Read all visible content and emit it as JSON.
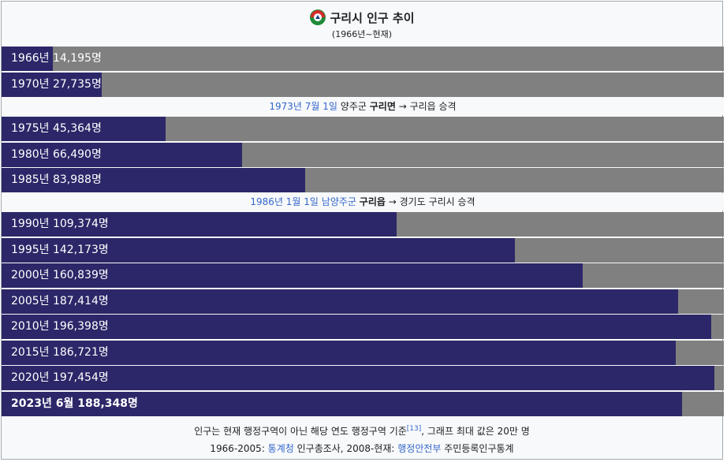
{
  "header": {
    "title": "구리시 인구 추이",
    "subtitle": "(1966년~현재)",
    "emblem": "gurisi-emblem"
  },
  "chart_data": {
    "type": "bar",
    "orientation": "horizontal",
    "title": "구리시 인구 추이",
    "subtitle": "(1966년~현재)",
    "max": 200000,
    "colors": {
      "bar": "#2c2768",
      "track": "#808080"
    },
    "bars": [
      {
        "label": "1966년 14,195명",
        "value": 14195
      },
      {
        "label": "1970년 27,735명",
        "value": 27735
      },
      {
        "label": "1975년 45,364명",
        "value": 45364
      },
      {
        "label": "1980년 66,490명",
        "value": 66490
      },
      {
        "label": "1985년 83,988명",
        "value": 83988
      },
      {
        "label": "1990년 109,374명",
        "value": 109374
      },
      {
        "label": "1995년 142,173명",
        "value": 142173
      },
      {
        "label": "2000년 160,839명",
        "value": 160839
      },
      {
        "label": "2005년 187,414명",
        "value": 187414
      },
      {
        "label": "2010년 196,398명",
        "value": 196398
      },
      {
        "label": "2015년 186,721명",
        "value": 186721
      },
      {
        "label": "2020년 197,454명",
        "value": 197454
      },
      {
        "label": "2023년 6월 188,348명",
        "value": 188348,
        "bold": true
      }
    ]
  },
  "notes": [
    {
      "date": "1973년 7월 1일",
      "text_a": "양주군",
      "text_b": "구리면",
      "arrow": "→",
      "text_c": "구리읍 승격"
    },
    {
      "date": "1986년 1월 1일",
      "text_a": "남양주군",
      "text_b": "구리읍",
      "arrow": "→",
      "text_c": "경기도 구리시 승격"
    }
  ],
  "footer": {
    "line1_text": "인구는 현재 행정구역이 아닌 해당 연도 행정구역 기준",
    "line1_ref": "[13]",
    "line1_tail": ", 그래프 최대 값은 20만 명",
    "line2_a": "1966-2005: ",
    "line2_link1": "통계청",
    "line2_b": " 인구총조사, 2008-현재: ",
    "line2_link2": "행정안전부",
    "line2_c": " 주민등록인구통계"
  }
}
